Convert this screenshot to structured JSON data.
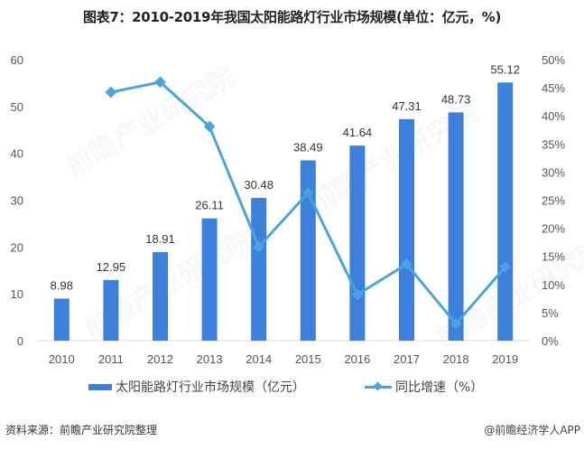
{
  "title": "图表7：2010-2019年我国太阳能路灯行业市场规模(单位：亿元，%)",
  "chart_data": {
    "type": "bar+line",
    "title": "图表7：2010-2019年我国太阳能路灯行业市场规模(单位：亿元，%)",
    "categories": [
      "2010",
      "2011",
      "2012",
      "2013",
      "2014",
      "2015",
      "2016",
      "2017",
      "2018",
      "2019"
    ],
    "series": [
      {
        "name": "太阳能路灯行业市场规模（亿元）",
        "type": "bar",
        "axis": "left",
        "color": "#3d80dc",
        "values": [
          8.98,
          12.95,
          18.91,
          26.11,
          30.48,
          38.49,
          41.64,
          47.31,
          48.73,
          55.12
        ],
        "labels": [
          "8.98",
          "12.95",
          "18.91",
          "26.11",
          "30.48",
          "38.49",
          "41.64",
          "47.31",
          "48.73",
          "55.12"
        ]
      },
      {
        "name": "同比增速（%）",
        "type": "line",
        "axis": "right",
        "color": "#4aa3e0",
        "values": [
          null,
          44.2,
          46.0,
          38.1,
          16.7,
          26.3,
          8.2,
          13.6,
          3.0,
          13.1
        ]
      }
    ],
    "left_axis": {
      "ylim": [
        0,
        60
      ],
      "ticks": [
        "0",
        "10",
        "20",
        "30",
        "40",
        "50",
        "60"
      ]
    },
    "right_axis": {
      "ylim": [
        0,
        50
      ],
      "ticks": [
        "0%",
        "5%",
        "10%",
        "15%",
        "20%",
        "25%",
        "30%",
        "35%",
        "40%",
        "45%",
        "50%"
      ]
    },
    "grid": false,
    "legend": "bottom"
  },
  "legend": {
    "bar_label": "太阳能路灯行业市场规模（亿元）",
    "line_label": "同比增速（%）"
  },
  "footer": {
    "source": "资料来源：前瞻产业研究院整理",
    "credit": "@前瞻经济学人APP"
  },
  "watermark": "前瞻产业研究院"
}
